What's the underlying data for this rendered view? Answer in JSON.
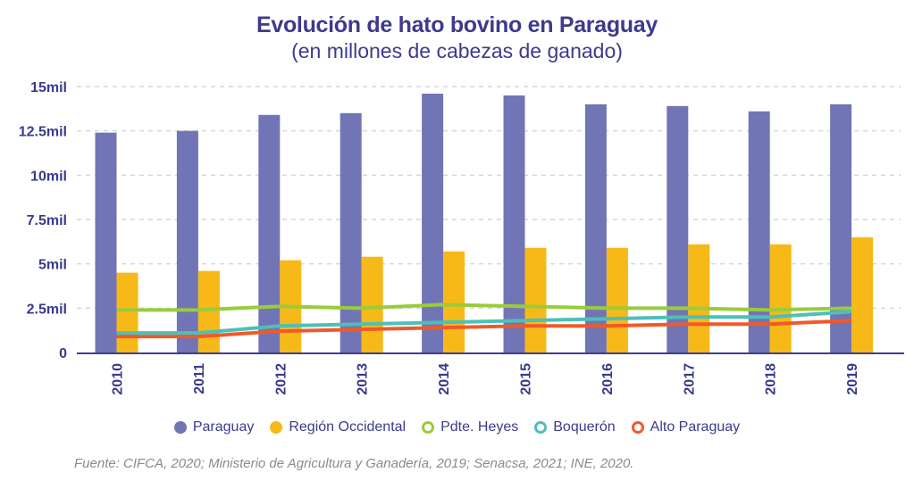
{
  "chart_data": {
    "type": "bar",
    "title": "Evolución de hato bovino en Paraguay",
    "subtitle": "(en millones de cabezas de ganado)",
    "xlabel": "",
    "ylabel": "",
    "categories": [
      "2010",
      "2011",
      "2012",
      "2013",
      "2014",
      "2015",
      "2016",
      "2017",
      "2018",
      "2019"
    ],
    "ylim": [
      0,
      15
    ],
    "yticks": [
      0,
      2.5,
      5,
      7.5,
      10,
      12.5,
      15
    ],
    "ytick_labels": [
      "0",
      "2.5mil",
      "5mil",
      "7.5mil",
      "10mil",
      "12.5mil",
      "15mil"
    ],
    "grid": true,
    "legend_position": "bottom-center",
    "series": [
      {
        "name": "Paraguay",
        "type": "bar",
        "color": "#7175b6",
        "values": [
          12.4,
          12.5,
          13.4,
          13.5,
          14.6,
          14.5,
          14.0,
          13.9,
          13.6,
          14.0
        ]
      },
      {
        "name": "Región Occidental",
        "type": "bar",
        "color": "#f7b918",
        "values": [
          4.5,
          4.6,
          5.2,
          5.4,
          5.7,
          5.9,
          5.9,
          6.1,
          6.1,
          6.5
        ]
      },
      {
        "name": "Pdte. Heyes",
        "type": "line",
        "color": "#9acb3c",
        "values": [
          2.4,
          2.4,
          2.6,
          2.5,
          2.7,
          2.6,
          2.5,
          2.5,
          2.4,
          2.5
        ]
      },
      {
        "name": "Boquerón",
        "type": "line",
        "color": "#4dc0b8",
        "values": [
          1.1,
          1.1,
          1.5,
          1.6,
          1.7,
          1.8,
          1.9,
          2.0,
          2.0,
          2.3
        ]
      },
      {
        "name": "Alto Paraguay",
        "type": "line",
        "color": "#ef5a28",
        "values": [
          0.9,
          0.9,
          1.2,
          1.3,
          1.4,
          1.5,
          1.5,
          1.6,
          1.6,
          1.8
        ]
      }
    ]
  },
  "source": "Fuente: CIFCA, 2020; Ministerio de Agricultura y Ganadería, 2019; Senacsa, 2021; INE, 2020."
}
